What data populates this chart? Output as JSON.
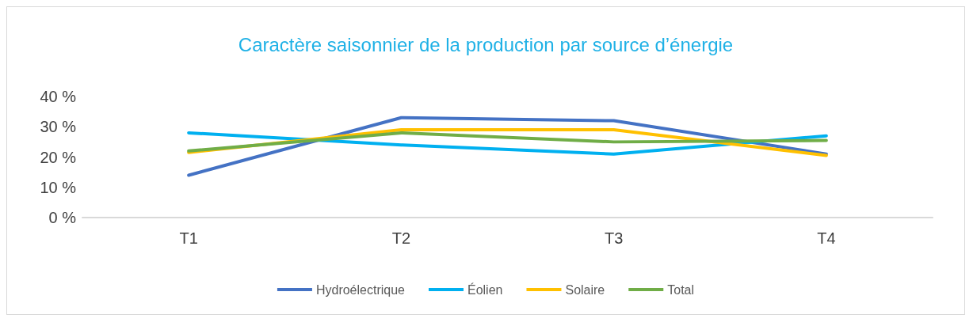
{
  "chart_data": {
    "type": "line",
    "title": "Caractère saisonnier de la production par source d’énergie",
    "categories": [
      "T1",
      "T2",
      "T3",
      "T4"
    ],
    "series": [
      {
        "name": "Hydroélectrique",
        "color": "#4472c4",
        "values": [
          14,
          33,
          32,
          21
        ]
      },
      {
        "name": "Éolien",
        "color": "#00b0f0",
        "values": [
          28,
          24,
          21,
          27
        ]
      },
      {
        "name": "Solaire",
        "color": "#ffc000",
        "values": [
          21.5,
          29,
          29,
          20.5
        ]
      },
      {
        "name": "Total",
        "color": "#70ad47",
        "values": [
          22,
          28,
          25,
          25.5
        ]
      }
    ],
    "ylim": [
      0,
      40
    ],
    "yticks": [
      {
        "value": 0,
        "label": "0 %"
      },
      {
        "value": 10,
        "label": "10 %"
      },
      {
        "value": 20,
        "label": "20 %"
      },
      {
        "value": 30,
        "label": "30 %"
      },
      {
        "value": 40,
        "label": "40 %"
      }
    ],
    "grid": false,
    "legend": "bottom",
    "marker": "none",
    "line_style": "solid"
  }
}
